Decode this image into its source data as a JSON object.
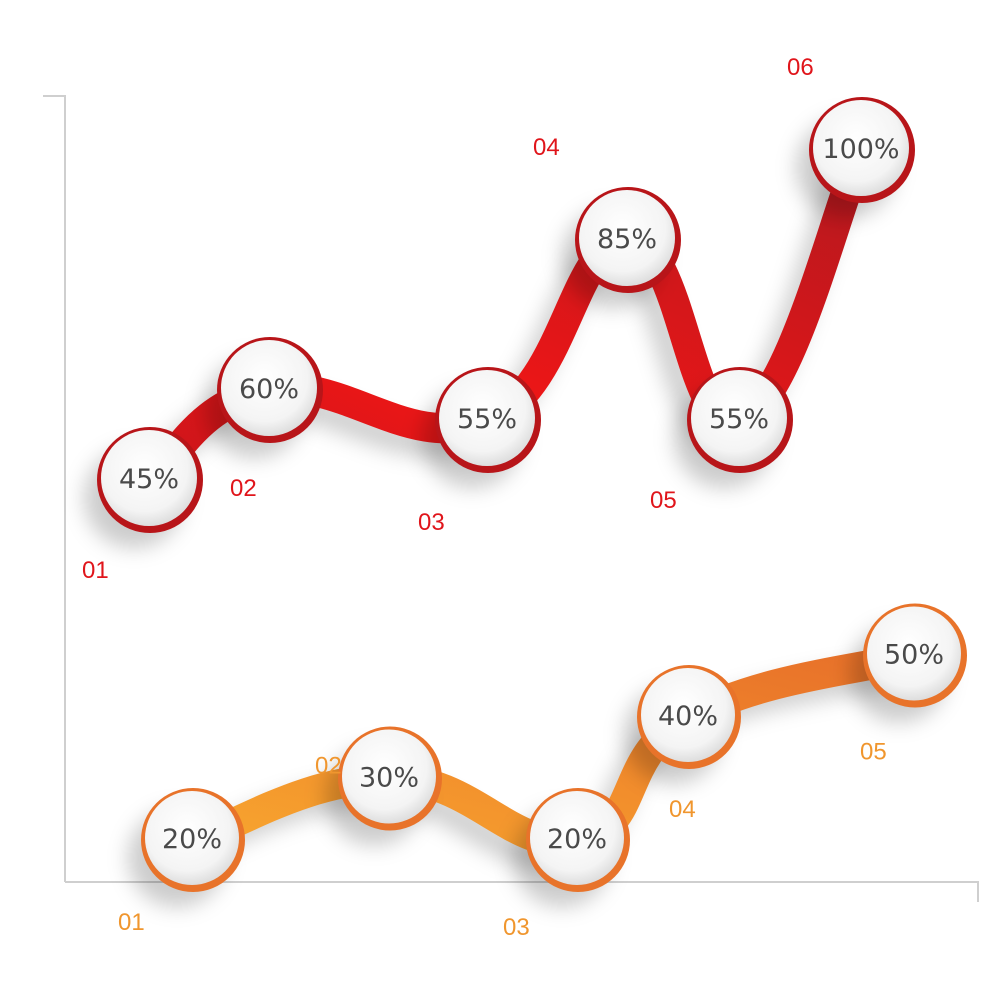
{
  "chart_data": {
    "type": "line",
    "title": "",
    "xlabel": "",
    "ylabel": "",
    "ylim": [
      0,
      110
    ],
    "grid": false,
    "series": [
      {
        "color": "#e01b1b",
        "color_dark": "#b81519",
        "x": [
          "01",
          "02",
          "03",
          "04",
          "05",
          "06"
        ],
        "values": [
          45,
          60,
          55,
          85,
          55,
          100
        ],
        "point_labels": [
          "45%",
          "60%",
          "55%",
          "85%",
          "55%",
          "100%"
        ]
      },
      {
        "color": "#f39a2b",
        "color_dark": "#e8732a",
        "x": [
          "01",
          "02",
          "03",
          "04",
          "05"
        ],
        "values": [
          20,
          30,
          20,
          40,
          50
        ],
        "point_labels": [
          "20%",
          "30%",
          "20%",
          "40%",
          "50%"
        ]
      }
    ]
  }
}
